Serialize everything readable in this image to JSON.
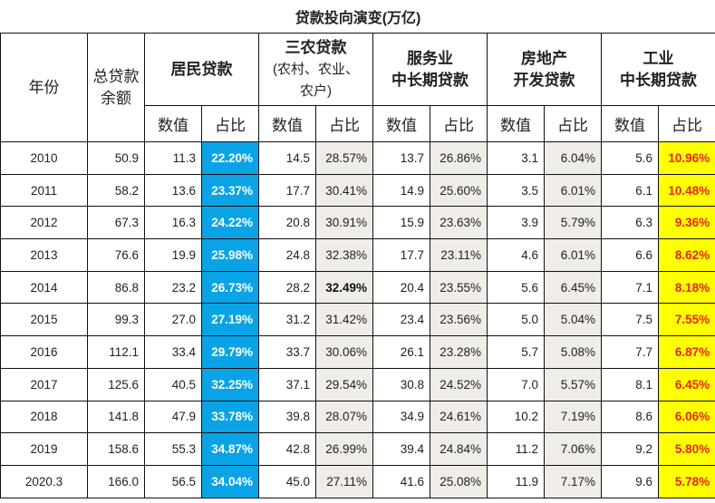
{
  "title": "贷款投向演变(万亿)",
  "headers": {
    "year": "年份",
    "total": [
      "总贷款",
      "余额"
    ],
    "groups": [
      {
        "lines": [
          "居民贷款"
        ]
      },
      {
        "lines": [
          "三农贷款"
        ],
        "sub": [
          "(农村、农业、",
          "农户)"
        ]
      },
      {
        "lines": [
          "服务业",
          "中长期贷款"
        ]
      },
      {
        "lines": [
          "房地产",
          "开发贷款"
        ]
      },
      {
        "lines": [
          "工业",
          "中长期贷款"
        ]
      }
    ],
    "value_label": "数值",
    "share_label": "占比"
  },
  "colors": {
    "resident_share_bg": "#0aa4e6",
    "share_bg": "#efede6",
    "industry_share_bg": "#ffff00",
    "industry_share_text": "#e4261b"
  },
  "rows": [
    {
      "year": "2010",
      "total": "50.9",
      "cells": [
        "11.3",
        "22.20%",
        "14.5",
        "28.57%",
        "13.7",
        "26.86%",
        "3.1",
        "6.04%",
        "5.6",
        "10.96%"
      ]
    },
    {
      "year": "2011",
      "total": "58.2",
      "cells": [
        "13.6",
        "23.37%",
        "17.7",
        "30.41%",
        "14.9",
        "25.60%",
        "3.5",
        "6.01%",
        "6.1",
        "10.48%"
      ]
    },
    {
      "year": "2012",
      "total": "67.3",
      "cells": [
        "16.3",
        "24.22%",
        "20.8",
        "30.91%",
        "15.9",
        "23.63%",
        "3.9",
        "5.79%",
        "6.3",
        "9.36%"
      ]
    },
    {
      "year": "2013",
      "total": "76.6",
      "cells": [
        "19.9",
        "25.98%",
        "24.8",
        "32.38%",
        "17.7",
        "23.11%",
        "4.6",
        "6.01%",
        "6.6",
        "8.62%"
      ]
    },
    {
      "year": "2014",
      "total": "86.8",
      "cells": [
        "23.2",
        "26.73%",
        "28.2",
        "32.49%",
        "20.4",
        "23.55%",
        "5.6",
        "6.45%",
        "7.1",
        "8.18%"
      ]
    },
    {
      "year": "2015",
      "total": "99.3",
      "cells": [
        "27.0",
        "27.19%",
        "31.2",
        "31.42%",
        "23.4",
        "23.56%",
        "5.0",
        "5.04%",
        "7.5",
        "7.55%"
      ]
    },
    {
      "year": "2016",
      "total": "112.1",
      "cells": [
        "33.4",
        "29.79%",
        "33.7",
        "30.06%",
        "26.1",
        "23.28%",
        "5.7",
        "5.08%",
        "7.7",
        "6.87%"
      ]
    },
    {
      "year": "2017",
      "total": "125.6",
      "cells": [
        "40.5",
        "32.25%",
        "37.1",
        "29.54%",
        "30.8",
        "24.52%",
        "7.0",
        "5.57%",
        "8.1",
        "6.45%"
      ]
    },
    {
      "year": "2018",
      "total": "141.8",
      "cells": [
        "47.9",
        "33.78%",
        "39.8",
        "28.07%",
        "34.9",
        "24.61%",
        "10.2",
        "7.19%",
        "8.6",
        "6.06%"
      ]
    },
    {
      "year": "2019",
      "total": "158.6",
      "cells": [
        "55.3",
        "34.87%",
        "42.8",
        "26.99%",
        "39.4",
        "24.84%",
        "11.2",
        "7.06%",
        "9.2",
        "5.80%"
      ]
    },
    {
      "year": "2020.3",
      "total": "166.0",
      "cells": [
        "56.5",
        "34.04%",
        "45.0",
        "27.11%",
        "41.6",
        "25.08%",
        "11.9",
        "7.17%",
        "9.6",
        "5.78%"
      ]
    }
  ]
}
